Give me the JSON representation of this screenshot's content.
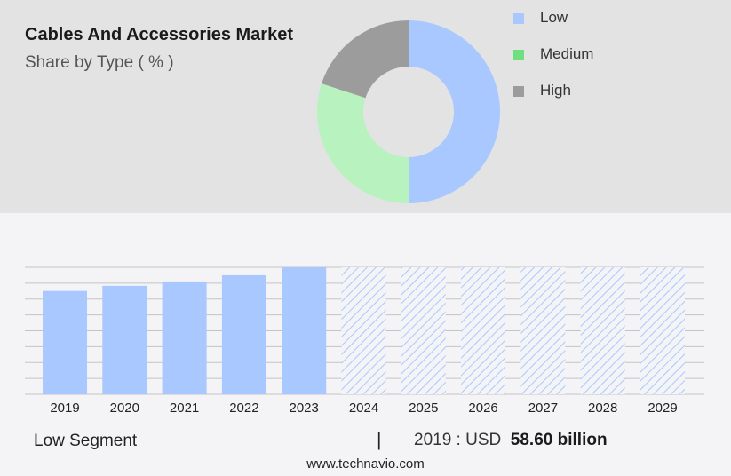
{
  "header": {
    "title": "Cables And Accessories Market",
    "subtitle": "Share by Type ( % )"
  },
  "colors": {
    "low": "#a8c8ff",
    "medium": "#b8f2bf",
    "high": "#9c9c9c",
    "legend_medium": "#6fe07e",
    "grid": "#c4c4c4"
  },
  "chart_data": [
    {
      "type": "pie",
      "variant": "donut",
      "title": "",
      "categories": [
        "Low",
        "Medium",
        "High"
      ],
      "values": [
        50,
        30,
        20
      ],
      "unit": "%",
      "legend": "right"
    },
    {
      "type": "bar",
      "title": "",
      "xlabel": "",
      "ylabel": "",
      "categories": [
        "2019",
        "2020",
        "2021",
        "2022",
        "2023",
        "2024",
        "2025",
        "2026",
        "2027",
        "2028",
        "2029"
      ],
      "values": [
        58.6,
        61.5,
        64.0,
        67.5,
        72.0,
        72.0,
        72.0,
        72.0,
        72.0,
        72.0,
        72.0
      ],
      "forecast_from": "2024",
      "ylim": [
        0,
        72
      ],
      "grid": true
    }
  ],
  "footer": {
    "segment_label": "Low Segment",
    "separator": "|",
    "value_prefix": "2019 : USD",
    "value_bold": "58.60 billion",
    "website": "www.technavio.com"
  }
}
